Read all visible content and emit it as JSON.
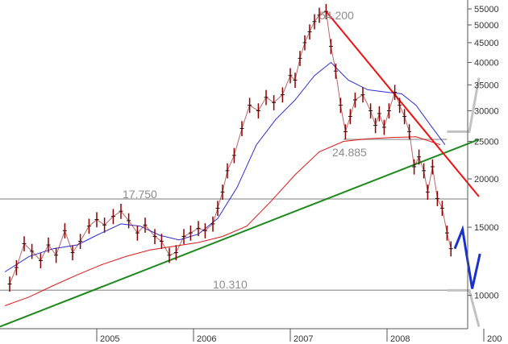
{
  "chart_data": {
    "type": "candlestick",
    "y_scale": "log",
    "ylim": [
      8200,
      58000
    ],
    "y_ticks": [
      "55000",
      "50000",
      "45000",
      "40000",
      "35000",
      "30000",
      "25000",
      "20000",
      "15000",
      "10000"
    ],
    "x_ticks": [
      "2005",
      "2006",
      "2007",
      "2008",
      "200"
    ],
    "annotations": [
      "54.200",
      "24.885",
      "17.750",
      "10.310"
    ],
    "horizontal_levels": [
      {
        "label": "17.750",
        "value": 17750
      },
      {
        "label": "10.310",
        "value": 10310
      },
      {
        "label": "",
        "value": 25300
      }
    ],
    "price": [
      {
        "x": 2004.1,
        "y": 10700
      },
      {
        "x": 2004.17,
        "y": 11800
      },
      {
        "x": 2004.25,
        "y": 13600
      },
      {
        "x": 2004.33,
        "y": 13000
      },
      {
        "x": 2004.42,
        "y": 12300
      },
      {
        "x": 2004.5,
        "y": 13500
      },
      {
        "x": 2004.58,
        "y": 12700
      },
      {
        "x": 2004.67,
        "y": 14700
      },
      {
        "x": 2004.75,
        "y": 12900
      },
      {
        "x": 2004.83,
        "y": 13800
      },
      {
        "x": 2004.92,
        "y": 15100
      },
      {
        "x": 2005.0,
        "y": 15700
      },
      {
        "x": 2005.08,
        "y": 15200
      },
      {
        "x": 2005.17,
        "y": 16000
      },
      {
        "x": 2005.25,
        "y": 16500
      },
      {
        "x": 2005.33,
        "y": 15600
      },
      {
        "x": 2005.42,
        "y": 14500
      },
      {
        "x": 2005.5,
        "y": 15200
      },
      {
        "x": 2005.6,
        "y": 14200
      },
      {
        "x": 2005.67,
        "y": 13800
      },
      {
        "x": 2005.75,
        "y": 12700
      },
      {
        "x": 2005.82,
        "y": 12900
      },
      {
        "x": 2005.9,
        "y": 14200
      },
      {
        "x": 2005.97,
        "y": 14500
      },
      {
        "x": 2006.05,
        "y": 14900
      },
      {
        "x": 2006.12,
        "y": 14700
      },
      {
        "x": 2006.2,
        "y": 15300
      },
      {
        "x": 2006.25,
        "y": 16800
      },
      {
        "x": 2006.3,
        "y": 18500
      },
      {
        "x": 2006.35,
        "y": 21000
      },
      {
        "x": 2006.42,
        "y": 23000
      },
      {
        "x": 2006.5,
        "y": 27000
      },
      {
        "x": 2006.58,
        "y": 31000
      },
      {
        "x": 2006.67,
        "y": 30000
      },
      {
        "x": 2006.75,
        "y": 32500
      },
      {
        "x": 2006.83,
        "y": 31500
      },
      {
        "x": 2006.92,
        "y": 33000
      },
      {
        "x": 2007.0,
        "y": 37000
      },
      {
        "x": 2007.05,
        "y": 36000
      },
      {
        "x": 2007.1,
        "y": 41000
      },
      {
        "x": 2007.15,
        "y": 45000
      },
      {
        "x": 2007.2,
        "y": 48000
      },
      {
        "x": 2007.25,
        "y": 51000
      },
      {
        "x": 2007.3,
        "y": 53000
      },
      {
        "x": 2007.37,
        "y": 54200
      },
      {
        "x": 2007.42,
        "y": 44000
      },
      {
        "x": 2007.47,
        "y": 38000
      },
      {
        "x": 2007.52,
        "y": 31000
      },
      {
        "x": 2007.57,
        "y": 26500
      },
      {
        "x": 2007.62,
        "y": 29000
      },
      {
        "x": 2007.67,
        "y": 32000
      },
      {
        "x": 2007.75,
        "y": 33000
      },
      {
        "x": 2007.83,
        "y": 30000
      },
      {
        "x": 2007.88,
        "y": 27500
      },
      {
        "x": 2007.92,
        "y": 29500
      },
      {
        "x": 2007.97,
        "y": 27200
      },
      {
        "x": 2008.02,
        "y": 30000
      },
      {
        "x": 2008.08,
        "y": 33500
      },
      {
        "x": 2008.13,
        "y": 31000
      },
      {
        "x": 2008.18,
        "y": 29000
      },
      {
        "x": 2008.23,
        "y": 26500
      },
      {
        "x": 2008.28,
        "y": 21500
      },
      {
        "x": 2008.33,
        "y": 22800
      },
      {
        "x": 2008.38,
        "y": 21000
      },
      {
        "x": 2008.42,
        "y": 18500
      },
      {
        "x": 2008.47,
        "y": 21500
      },
      {
        "x": 2008.52,
        "y": 17800
      },
      {
        "x": 2008.57,
        "y": 16800
      },
      {
        "x": 2008.62,
        "y": 14500
      },
      {
        "x": 2008.66,
        "y": 13200
      }
    ],
    "ma_blue": [
      {
        "x": 2004.05,
        "y": 11500
      },
      {
        "x": 2004.3,
        "y": 12600
      },
      {
        "x": 2004.55,
        "y": 13200
      },
      {
        "x": 2004.8,
        "y": 13500
      },
      {
        "x": 2005.0,
        "y": 14300
      },
      {
        "x": 2005.25,
        "y": 15300
      },
      {
        "x": 2005.45,
        "y": 15100
      },
      {
        "x": 2005.65,
        "y": 14300
      },
      {
        "x": 2005.85,
        "y": 13900
      },
      {
        "x": 2006.05,
        "y": 14400
      },
      {
        "x": 2006.25,
        "y": 15800
      },
      {
        "x": 2006.45,
        "y": 19000
      },
      {
        "x": 2006.65,
        "y": 24500
      },
      {
        "x": 2006.85,
        "y": 28500
      },
      {
        "x": 2007.05,
        "y": 32000
      },
      {
        "x": 2007.25,
        "y": 37000
      },
      {
        "x": 2007.42,
        "y": 40000
      },
      {
        "x": 2007.6,
        "y": 36000
      },
      {
        "x": 2007.8,
        "y": 34000
      },
      {
        "x": 2008.0,
        "y": 33500
      },
      {
        "x": 2008.15,
        "y": 33200
      },
      {
        "x": 2008.3,
        "y": 31000
      },
      {
        "x": 2008.45,
        "y": 27500
      },
      {
        "x": 2008.6,
        "y": 24500
      }
    ],
    "ma_red": [
      {
        "x": 2004.05,
        "y": 9400
      },
      {
        "x": 2004.3,
        "y": 9900
      },
      {
        "x": 2004.55,
        "y": 10600
      },
      {
        "x": 2004.8,
        "y": 11300
      },
      {
        "x": 2005.05,
        "y": 12000
      },
      {
        "x": 2005.3,
        "y": 12600
      },
      {
        "x": 2005.55,
        "y": 13100
      },
      {
        "x": 2005.8,
        "y": 13400
      },
      {
        "x": 2006.05,
        "y": 13700
      },
      {
        "x": 2006.3,
        "y": 14200
      },
      {
        "x": 2006.55,
        "y": 15100
      },
      {
        "x": 2006.8,
        "y": 17500
      },
      {
        "x": 2007.05,
        "y": 20500
      },
      {
        "x": 2007.3,
        "y": 23500
      },
      {
        "x": 2007.55,
        "y": 25000
      },
      {
        "x": 2007.8,
        "y": 25400
      },
      {
        "x": 2008.05,
        "y": 25600
      },
      {
        "x": 2008.3,
        "y": 25700
      },
      {
        "x": 2008.55,
        "y": 24500
      }
    ],
    "trendline_green": [
      {
        "x": 2004.0,
        "y": 8300
      },
      {
        "x": 2008.95,
        "y": 25300
      }
    ],
    "trendline_red": [
      {
        "x": 2007.37,
        "y": 54200
      },
      {
        "x": 2008.95,
        "y": 18000
      }
    ],
    "projection_blue": [
      {
        "x": 2008.7,
        "y": 13200
      },
      {
        "x": 2008.78,
        "y": 14800
      },
      {
        "x": 2008.88,
        "y": 10400
      },
      {
        "x": 2008.96,
        "y": 12800
      }
    ],
    "projection_grey": [
      {
        "x": 2008.62,
        "y": 26500
      },
      {
        "x": 2008.85,
        "y": 26500
      },
      {
        "x": 2008.95,
        "y": 36500
      }
    ],
    "projection_grey_lower": [
      {
        "x": 2008.62,
        "y": 10300
      },
      {
        "x": 2008.85,
        "y": 10300
      },
      {
        "x": 2008.95,
        "y": 8300
      }
    ],
    "colors": {
      "price": "#8b0000",
      "ma_blue": "#2b2bd8",
      "ma_red": "#e01818",
      "trend_green": "#1b8a1b",
      "trend_red": "#ee1111",
      "projection_blue": "#1a32cc",
      "level": "#a8a8a8",
      "annotation_text": "#8c8c8c",
      "projection_grey": "#c2c2c2"
    }
  }
}
